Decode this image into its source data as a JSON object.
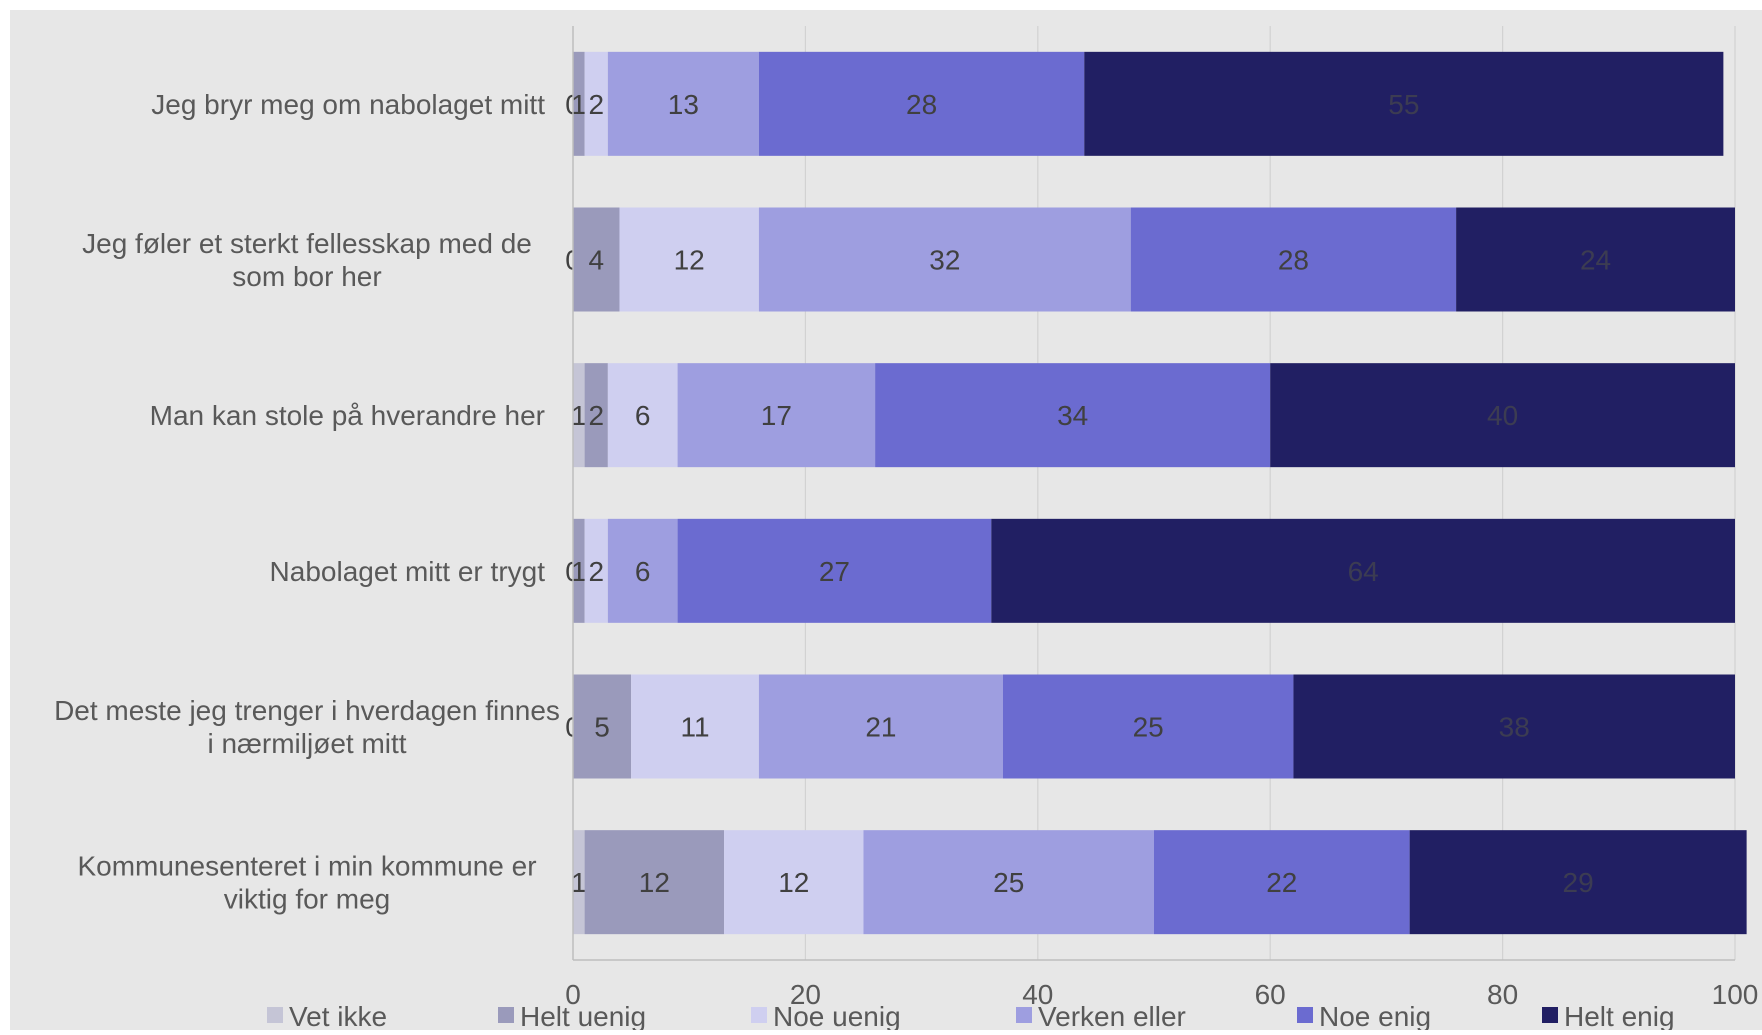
{
  "chart_data": {
    "type": "bar",
    "orientation": "horizontal",
    "stacked": true,
    "categories": [
      "Jeg bryr meg om nabolaget mitt",
      "Jeg føler et sterkt fellesskap med de som bor her",
      "Man kan stole på hverandre her",
      "Nabolaget mitt er trygt",
      "Det meste jeg trenger i hverdagen finnes i nærmiljøet mitt",
      "Kommunesenteret i min kommune er viktig for meg"
    ],
    "category_lines": [
      [
        "Jeg bryr meg om nabolaget mitt"
      ],
      [
        "Jeg føler et sterkt fellesskap med de",
        "som bor her"
      ],
      [
        "Man kan stole på hverandre her"
      ],
      [
        "Nabolaget mitt er trygt"
      ],
      [
        "Det meste jeg trenger i hverdagen finnes",
        "i nærmiljøet mitt"
      ],
      [
        "Kommunesenteret i min kommune er",
        "viktig for meg"
      ]
    ],
    "series": [
      {
        "name": "Vet ikke",
        "color": "#c5c5d6",
        "label_color": "#404040",
        "values": [
          0,
          0,
          1,
          0,
          0,
          1
        ]
      },
      {
        "name": "Helt uenig",
        "color": "#9a9abb",
        "label_color": "#404040",
        "values": [
          1,
          4,
          2,
          1,
          5,
          12
        ]
      },
      {
        "name": "Noe uenig",
        "color": "#cfcff0",
        "label_color": "#404040",
        "values": [
          2,
          12,
          6,
          2,
          11,
          12
        ]
      },
      {
        "name": "Verken eller",
        "color": "#9e9ee0",
        "label_color": "#404040",
        "values": [
          13,
          32,
          17,
          6,
          21,
          25
        ]
      },
      {
        "name": "Noe enig",
        "color": "#6b6bd0",
        "label_color": "#404040",
        "values": [
          28,
          28,
          34,
          27,
          25,
          22
        ]
      },
      {
        "name": "Helt enig",
        "color": "#211f63",
        "label_color": "#3c3c52",
        "values": [
          55,
          24,
          40,
          64,
          38,
          29
        ]
      }
    ],
    "xlim": [
      0,
      100
    ],
    "xticks": [
      0,
      20,
      40,
      60,
      80,
      100
    ],
    "grid": true,
    "legend": "bottom",
    "colors": {
      "plot_background": "#e7e7e7",
      "gridline": "#d2d2d2",
      "axis_text": "#595959"
    }
  }
}
